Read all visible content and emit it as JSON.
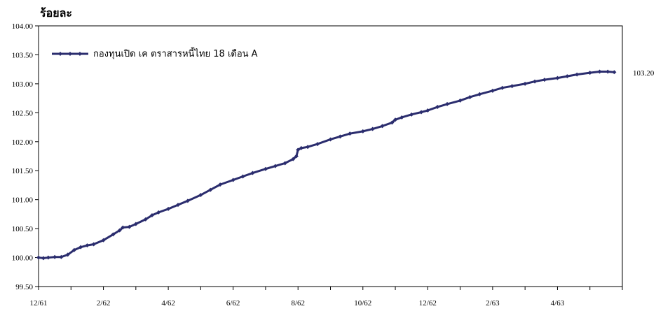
{
  "chart_data": {
    "type": "line",
    "title": "",
    "ylabel": "ร้อยละ",
    "xlabel": "",
    "ylim": [
      99.5,
      104.0
    ],
    "yticks": [
      "99.50",
      "100.00",
      "100.50",
      "101.00",
      "101.50",
      "102.00",
      "102.50",
      "103.00",
      "103.50",
      "104.00"
    ],
    "xticks": [
      "12/61",
      "2/62",
      "4/62",
      "6/62",
      "8/62",
      "10/62",
      "12/62",
      "2/63",
      "4/63"
    ],
    "x_range": [
      0,
      18
    ],
    "grid": false,
    "legend_position": "top-left",
    "end_label": "103.20",
    "series": [
      {
        "name": "กองทุนเปิด เค ตราสารหนี้ไทย 18 เดือน A",
        "color": "#2b2d6e",
        "points": [
          [
            0.0,
            100.0
          ],
          [
            0.15,
            99.99
          ],
          [
            0.3,
            100.0
          ],
          [
            0.5,
            100.01
          ],
          [
            0.7,
            100.01
          ],
          [
            0.9,
            100.05
          ],
          [
            1.1,
            100.13
          ],
          [
            1.3,
            100.18
          ],
          [
            1.5,
            100.21
          ],
          [
            1.7,
            100.23
          ],
          [
            2.0,
            100.3
          ],
          [
            2.3,
            100.4
          ],
          [
            2.5,
            100.47
          ],
          [
            2.6,
            100.52
          ],
          [
            2.8,
            100.53
          ],
          [
            3.0,
            100.58
          ],
          [
            3.3,
            100.66
          ],
          [
            3.5,
            100.73
          ],
          [
            3.7,
            100.78
          ],
          [
            4.0,
            100.84
          ],
          [
            4.3,
            100.91
          ],
          [
            4.6,
            100.98
          ],
          [
            5.0,
            101.08
          ],
          [
            5.3,
            101.17
          ],
          [
            5.6,
            101.26
          ],
          [
            6.0,
            101.34
          ],
          [
            6.3,
            101.4
          ],
          [
            6.6,
            101.46
          ],
          [
            7.0,
            101.53
          ],
          [
            7.3,
            101.58
          ],
          [
            7.6,
            101.63
          ],
          [
            7.85,
            101.7
          ],
          [
            7.95,
            101.75
          ],
          [
            8.0,
            101.86
          ],
          [
            8.1,
            101.89
          ],
          [
            8.3,
            101.91
          ],
          [
            8.6,
            101.96
          ],
          [
            9.0,
            102.04
          ],
          [
            9.3,
            102.09
          ],
          [
            9.6,
            102.14
          ],
          [
            10.0,
            102.18
          ],
          [
            10.3,
            102.22
          ],
          [
            10.6,
            102.27
          ],
          [
            10.9,
            102.33
          ],
          [
            11.0,
            102.38
          ],
          [
            11.2,
            102.42
          ],
          [
            11.5,
            102.47
          ],
          [
            11.8,
            102.51
          ],
          [
            12.0,
            102.54
          ],
          [
            12.3,
            102.6
          ],
          [
            12.6,
            102.65
          ],
          [
            13.0,
            102.71
          ],
          [
            13.3,
            102.77
          ],
          [
            13.6,
            102.82
          ],
          [
            14.0,
            102.88
          ],
          [
            14.3,
            102.93
          ],
          [
            14.6,
            102.96
          ],
          [
            15.0,
            103.0
          ],
          [
            15.3,
            103.04
          ],
          [
            15.6,
            103.07
          ],
          [
            16.0,
            103.1
          ],
          [
            16.3,
            103.13
          ],
          [
            16.6,
            103.16
          ],
          [
            17.0,
            103.19
          ],
          [
            17.3,
            103.21
          ],
          [
            17.55,
            103.21
          ],
          [
            17.75,
            103.2
          ]
        ]
      }
    ]
  }
}
